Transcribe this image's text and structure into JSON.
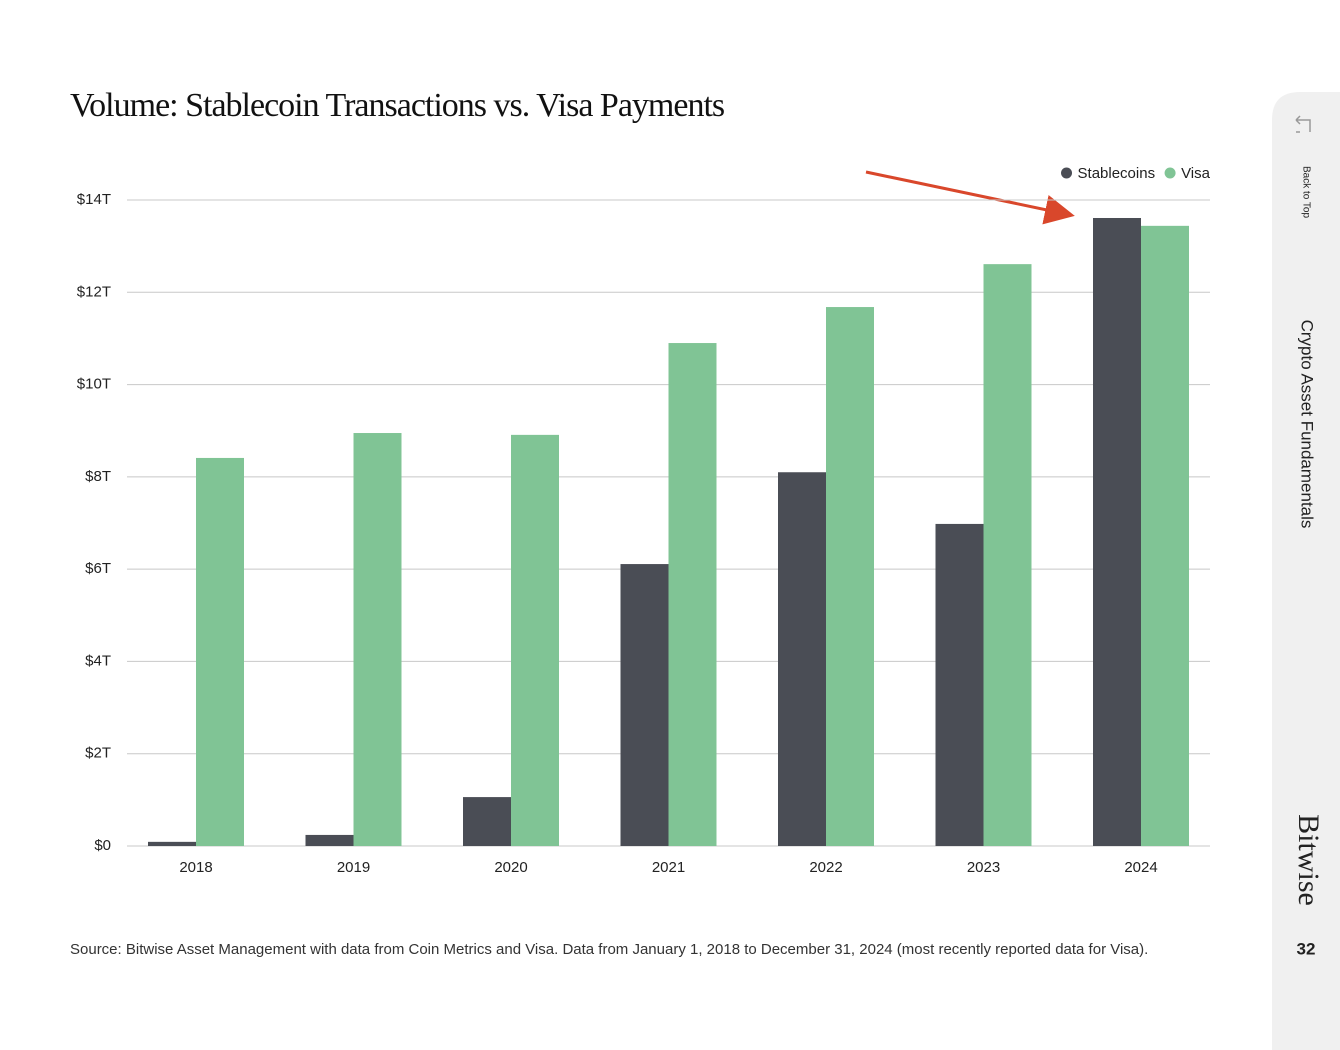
{
  "chart_data": {
    "type": "bar",
    "title": "Volume: Stablecoin Transactions vs. Visa Payments",
    "categories": [
      "2018",
      "2019",
      "2020",
      "2021",
      "2022",
      "2023",
      "2024"
    ],
    "series": [
      {
        "name": "Stablecoins",
        "color": "#4a4d55",
        "values": [
          0.09,
          0.24,
          1.06,
          6.11,
          8.1,
          6.98,
          13.61
        ]
      },
      {
        "name": "Visa",
        "color": "#80c495",
        "values": [
          8.41,
          8.95,
          8.91,
          10.9,
          11.68,
          12.61,
          13.44
        ]
      }
    ],
    "ylim": [
      0,
      14
    ],
    "yticks": [
      {
        "value": 0,
        "label": "$0"
      },
      {
        "value": 2,
        "label": "$2T"
      },
      {
        "value": 4,
        "label": "$4T"
      },
      {
        "value": 6,
        "label": "$6T"
      },
      {
        "value": 8,
        "label": "$8T"
      },
      {
        "value": 10,
        "label": "$10T"
      },
      {
        "value": 12,
        "label": "$12T"
      },
      {
        "value": 14,
        "label": "$14T"
      }
    ],
    "grid": true,
    "legend": "top-right",
    "source": "Source: Bitwise Asset Management with data from Coin Metrics and Visa. Data from January 1, 2018 to December 31, 2024 (most recently reported data for Visa)."
  },
  "sidebar": {
    "back": "Back to Top",
    "section": "Crypto Asset Fundamentals",
    "brand": "Bitwise",
    "page_number": "32"
  }
}
